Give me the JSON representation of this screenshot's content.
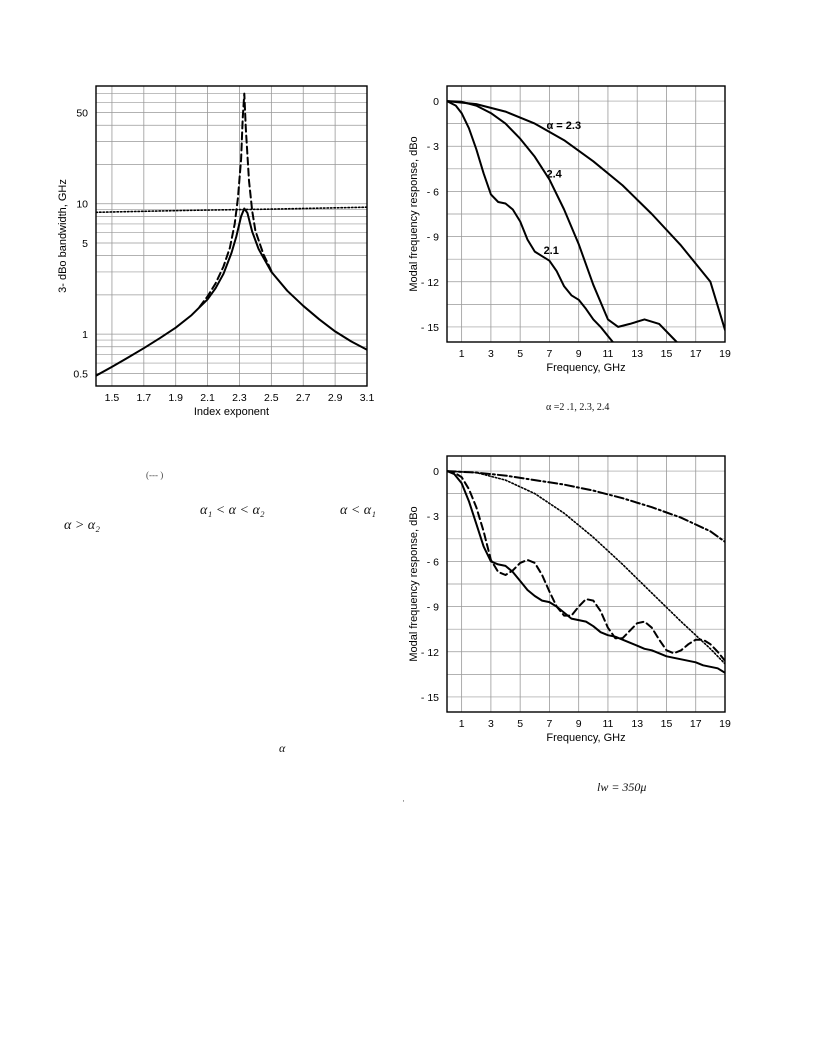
{
  "chart_data": [
    {
      "type": "line",
      "xlabel": "Index exponent",
      "ylabel": "3- dBo bandwidth, GHz",
      "xlim": [
        1.4,
        3.1
      ],
      "ylim": [
        0.4,
        80
      ],
      "log_y": true,
      "grid": true,
      "x_ticks": [
        "1.5",
        "1.7",
        "1.9",
        "2.1",
        "2.3",
        "2.5",
        "2.7",
        "2.9",
        "3.1"
      ],
      "y_ticks": [
        {
          "v": 0.5,
          "label": "0.5"
        },
        {
          "v": 1,
          "label": "1"
        },
        {
          "v": 5,
          "label": "5"
        },
        {
          "v": 10,
          "label": "10"
        },
        {
          "v": 50,
          "label": "50"
        }
      ],
      "series": [
        {
          "style": "solid",
          "points": [
            [
              1.4,
              0.48
            ],
            [
              1.5,
              0.56
            ],
            [
              1.6,
              0.66
            ],
            [
              1.7,
              0.78
            ],
            [
              1.8,
              0.93
            ],
            [
              1.9,
              1.12
            ],
            [
              2.0,
              1.4
            ],
            [
              2.1,
              1.85
            ],
            [
              2.15,
              2.25
            ],
            [
              2.2,
              2.9
            ],
            [
              2.25,
              4.2
            ],
            [
              2.28,
              5.6
            ],
            [
              2.31,
              8.0
            ],
            [
              2.33,
              9.2
            ],
            [
              2.35,
              8.5
            ],
            [
              2.38,
              6.1
            ],
            [
              2.42,
              4.5
            ],
            [
              2.5,
              3.0
            ],
            [
              2.6,
              2.15
            ],
            [
              2.7,
              1.65
            ],
            [
              2.8,
              1.3
            ],
            [
              2.9,
              1.05
            ],
            [
              3.0,
              0.88
            ],
            [
              3.1,
              0.76
            ]
          ]
        },
        {
          "style": "dashed",
          "points": [
            [
              2.05,
              1.62
            ],
            [
              2.1,
              1.95
            ],
            [
              2.15,
              2.45
            ],
            [
              2.2,
              3.3
            ],
            [
              2.24,
              4.6
            ],
            [
              2.27,
              7.0
            ],
            [
              2.29,
              11
            ],
            [
              2.31,
              22
            ],
            [
              2.32,
              45
            ],
            [
              2.33,
              70
            ],
            [
              2.34,
              38
            ],
            [
              2.36,
              15
            ],
            [
              2.38,
              8.8
            ],
            [
              2.4,
              6.2
            ],
            [
              2.45,
              4.1
            ],
            [
              2.5,
              3.05
            ]
          ]
        },
        {
          "style": "dotted",
          "points": [
            [
              1.4,
              8.6
            ],
            [
              2.0,
              8.9
            ],
            [
              2.5,
              9.1
            ],
            [
              3.1,
              9.4
            ]
          ]
        }
      ]
    },
    {
      "type": "line",
      "xlabel": "Frequency, GHz",
      "ylabel": "Modal frequency response, dBo",
      "xlim": [
        0,
        19
      ],
      "ylim": [
        -16,
        1
      ],
      "grid": true,
      "x_ticks": [
        "1",
        "3",
        "5",
        "7",
        "9",
        "11",
        "13",
        "15",
        "17",
        "19"
      ],
      "y_ticks": [
        {
          "v": 0,
          "label": "0"
        },
        {
          "v": -3,
          "label": "- 3"
        },
        {
          "v": -6,
          "label": "- 6"
        },
        {
          "v": -9,
          "label": "- 9"
        },
        {
          "v": -12,
          "label": "- 12"
        },
        {
          "v": -15,
          "label": "- 15"
        }
      ],
      "annotations": [
        {
          "text": "α = 2.3",
          "x": 6.8,
          "y": -1.6
        },
        {
          "text": "2.4",
          "x": 6.8,
          "y": -4.8
        },
        {
          "text": "2.1",
          "x": 6.6,
          "y": -9.9
        }
      ],
      "series": [
        {
          "name": "α = 2.3",
          "style": "solid",
          "points": [
            [
              0,
              0
            ],
            [
              2,
              -0.2
            ],
            [
              4,
              -0.7
            ],
            [
              6,
              -1.5
            ],
            [
              8,
              -2.6
            ],
            [
              10,
              -4.0
            ],
            [
              12,
              -5.6
            ],
            [
              14,
              -7.5
            ],
            [
              16,
              -9.6
            ],
            [
              18,
              -12.0
            ],
            [
              19,
              -15.2
            ]
          ]
        },
        {
          "name": "2.4",
          "style": "solid",
          "points": [
            [
              0,
              0
            ],
            [
              1,
              -0.05
            ],
            [
              2,
              -0.3
            ],
            [
              3,
              -0.8
            ],
            [
              4,
              -1.5
            ],
            [
              5,
              -2.5
            ],
            [
              6,
              -3.7
            ],
            [
              7,
              -5.2
            ],
            [
              8,
              -7.2
            ],
            [
              9,
              -9.5
            ],
            [
              10,
              -12.2
            ],
            [
              11,
              -14.5
            ],
            [
              11.7,
              -15.0
            ],
            [
              12.5,
              -14.8
            ],
            [
              13.5,
              -14.5
            ],
            [
              14.5,
              -14.8
            ],
            [
              15.5,
              -15.8
            ],
            [
              16,
              -16.3
            ]
          ]
        },
        {
          "name": "2.1",
          "style": "solid",
          "points": [
            [
              0,
              0
            ],
            [
              0.6,
              -0.3
            ],
            [
              1,
              -0.8
            ],
            [
              1.5,
              -1.8
            ],
            [
              2,
              -3.2
            ],
            [
              2.5,
              -4.8
            ],
            [
              3,
              -6.2
            ],
            [
              3.5,
              -6.7
            ],
            [
              4,
              -6.8
            ],
            [
              4.5,
              -7.2
            ],
            [
              5,
              -8.0
            ],
            [
              5.5,
              -9.2
            ],
            [
              6,
              -10.0
            ],
            [
              6.5,
              -10.3
            ],
            [
              7,
              -10.6
            ],
            [
              7.5,
              -11.3
            ],
            [
              8,
              -12.3
            ],
            [
              8.5,
              -12.9
            ],
            [
              9,
              -13.2
            ],
            [
              9.5,
              -13.8
            ],
            [
              10,
              -14.5
            ],
            [
              10.5,
              -15.0
            ],
            [
              11,
              -15.6
            ],
            [
              11.5,
              -16.2
            ]
          ]
        }
      ]
    },
    {
      "type": "line",
      "xlabel": "Frequency, GHz",
      "ylabel": "Modal frequency response, dBo",
      "xlim": [
        0,
        19
      ],
      "ylim": [
        -16,
        1
      ],
      "grid": true,
      "x_ticks": [
        "1",
        "3",
        "5",
        "7",
        "9",
        "11",
        "13",
        "15",
        "17",
        "19"
      ],
      "y_ticks": [
        {
          "v": 0,
          "label": "0"
        },
        {
          "v": -3,
          "label": "- 3"
        },
        {
          "v": -6,
          "label": "- 6"
        },
        {
          "v": -9,
          "label": "- 9"
        },
        {
          "v": -12,
          "label": "- 12"
        },
        {
          "v": -15,
          "label": "- 15"
        }
      ],
      "series": [
        {
          "style": "solid",
          "points": [
            [
              0,
              0
            ],
            [
              0.5,
              -0.2
            ],
            [
              1,
              -0.8
            ],
            [
              1.5,
              -2.0
            ],
            [
              2,
              -3.5
            ],
            [
              2.5,
              -5.0
            ],
            [
              3,
              -6.0
            ],
            [
              3.5,
              -6.2
            ],
            [
              4,
              -6.3
            ],
            [
              4.5,
              -6.7
            ],
            [
              5,
              -7.3
            ],
            [
              5.5,
              -7.9
            ],
            [
              6,
              -8.3
            ],
            [
              6.5,
              -8.6
            ],
            [
              7,
              -8.7
            ],
            [
              7.5,
              -9.0
            ],
            [
              8,
              -9.4
            ],
            [
              8.5,
              -9.8
            ],
            [
              9,
              -9.9
            ],
            [
              9.5,
              -10.0
            ],
            [
              10,
              -10.3
            ],
            [
              10.5,
              -10.7
            ],
            [
              11,
              -10.9
            ],
            [
              11.5,
              -11.0
            ],
            [
              12,
              -11.2
            ],
            [
              12.5,
              -11.4
            ],
            [
              13,
              -11.6
            ],
            [
              13.5,
              -11.8
            ],
            [
              14,
              -11.9
            ],
            [
              14.5,
              -12.1
            ],
            [
              15,
              -12.3
            ],
            [
              15.5,
              -12.4
            ],
            [
              16,
              -12.5
            ],
            [
              16.5,
              -12.6
            ],
            [
              17,
              -12.7
            ],
            [
              17.5,
              -12.9
            ],
            [
              18,
              -13.0
            ],
            [
              18.5,
              -13.1
            ],
            [
              19,
              -13.4
            ]
          ]
        },
        {
          "style": "dashed",
          "points": [
            [
              0,
              0
            ],
            [
              0.5,
              -0.1
            ],
            [
              1,
              -0.4
            ],
            [
              1.5,
              -1.2
            ],
            [
              2,
              -2.4
            ],
            [
              2.5,
              -4.0
            ],
            [
              3,
              -5.9
            ],
            [
              3.5,
              -6.7
            ],
            [
              4,
              -6.9
            ],
            [
              4.5,
              -6.6
            ],
            [
              5,
              -6.1
            ],
            [
              5.5,
              -5.9
            ],
            [
              6,
              -6.1
            ],
            [
              6.5,
              -6.9
            ],
            [
              7,
              -8.0
            ],
            [
              7.5,
              -9.0
            ],
            [
              8,
              -9.6
            ],
            [
              8.5,
              -9.6
            ],
            [
              9,
              -9.0
            ],
            [
              9.5,
              -8.5
            ],
            [
              10,
              -8.6
            ],
            [
              10.5,
              -9.3
            ],
            [
              11,
              -10.4
            ],
            [
              11.5,
              -11.1
            ],
            [
              12,
              -11.1
            ],
            [
              12.5,
              -10.6
            ],
            [
              13,
              -10.1
            ],
            [
              13.5,
              -10.0
            ],
            [
              14,
              -10.4
            ],
            [
              14.5,
              -11.2
            ],
            [
              15,
              -11.9
            ],
            [
              15.5,
              -12.1
            ],
            [
              16,
              -11.9
            ],
            [
              16.5,
              -11.5
            ],
            [
              17,
              -11.2
            ],
            [
              17.5,
              -11.2
            ],
            [
              18,
              -11.5
            ],
            [
              18.5,
              -12.0
            ],
            [
              19,
              -12.6
            ]
          ]
        },
        {
          "style": "dotted",
          "points": [
            [
              0,
              0
            ],
            [
              2,
              -0.1
            ],
            [
              4,
              -0.6
            ],
            [
              6,
              -1.5
            ],
            [
              8,
              -2.8
            ],
            [
              10,
              -4.4
            ],
            [
              12,
              -6.2
            ],
            [
              14,
              -8.1
            ],
            [
              16,
              -10.0
            ],
            [
              18,
              -11.8
            ],
            [
              19,
              -12.8
            ]
          ]
        },
        {
          "style": "dashdot",
          "points": [
            [
              0,
              0
            ],
            [
              2,
              -0.1
            ],
            [
              4,
              -0.3
            ],
            [
              6,
              -0.6
            ],
            [
              8,
              -0.9
            ],
            [
              10,
              -1.3
            ],
            [
              12,
              -1.8
            ],
            [
              14,
              -2.4
            ],
            [
              16,
              -3.1
            ],
            [
              18,
              -4.0
            ],
            [
              19,
              -4.7
            ]
          ]
        }
      ]
    }
  ],
  "text_fragments": {
    "caption_top_right": "α =2 .1, 2.3, 2.4",
    "ref_mark": "(--- )",
    "cond_range": "α₁ < α < α₂",
    "cond_low": "α < α₁",
    "cond_high": "α > α₂",
    "alpha": "α",
    "caption_bottom_right": "lw = 350μ",
    "stray_dot": "·"
  }
}
